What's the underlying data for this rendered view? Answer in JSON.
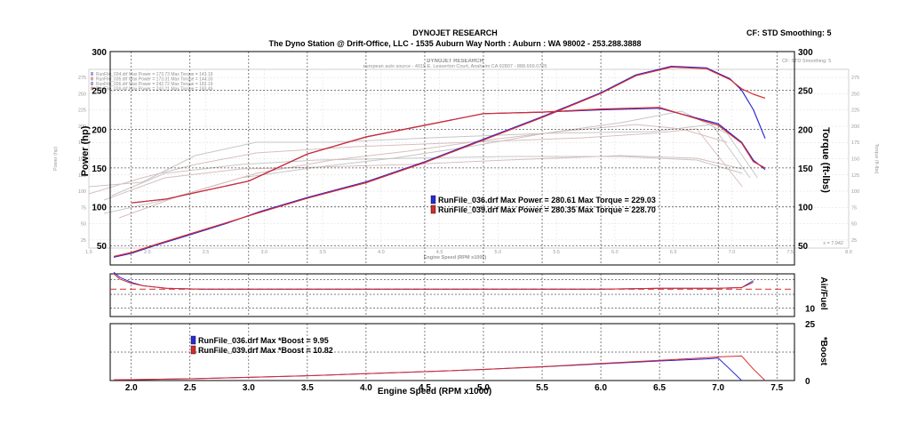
{
  "header": {
    "company": "DYNOJET RESEARCH",
    "shop": "The Dyno Station @ Drift-Office, LLC - 1535 Auburn Way North : Auburn : WA 98002 - 253.288.3888",
    "settings": "CF: STD  Smoothing: 5"
  },
  "ghost": {
    "company": "DYNOJET RESEARCH",
    "shop": "european auto source - 4015 E. Leaverton Court, Anaheim CA 92807 - 888.669.0705",
    "settings": "CF: STD  Smoothing: 5",
    "legend": [
      "RunFile_034.drf Max Power = 173.73     Max Torque = 143.19",
      "RunFile_035.drf Max Power = 173.31     Max Torque = 144.33",
      "RunFile_036.drf Max Power = 242.72     Max Torque = 183.19",
      "RunFile_039.drf Max Power = 243.21     Max Torque = 183.49"
    ],
    "left_axis_label": "Power (hp)",
    "right_axis_label": "Torque (ft-lbs)",
    "x_ticks": [
      "1.5",
      "2.0",
      "2.5",
      "3.0",
      "3.5",
      "4.0",
      "4.5",
      "5.0",
      "5.5",
      "6.0",
      "6.5",
      "7.0",
      "7.5",
      "8.0"
    ],
    "y_ticks": [
      "25",
      "50",
      "75",
      "100",
      "125",
      "150",
      "175",
      "200",
      "225",
      "250",
      "275"
    ],
    "xlabel": "Engine Speed (RPM x1000)",
    "cursor_readout": "x = 7.942"
  },
  "main_legend": [
    {
      "text": "RunFile_036.drf Max Power = 280.61    Max Torque = 229.03",
      "color": "#2a2ad8"
    },
    {
      "text": "RunFile_039.drf Max Power = 280.35    Max Torque = 228.70",
      "color": "#d82a2a"
    }
  ],
  "boost_legend": [
    {
      "text": "RunFile_036.drf Max *Boost = 9.95",
      "color": "#2a2ad8"
    },
    {
      "text": "RunFile_039.drf Max *Boost = 10.82",
      "color": "#d82a2a"
    }
  ],
  "labels": {
    "power_axis": "Power (hp)",
    "torque_axis": "Torque (ft-lbs)",
    "afr_axis": "Air/Fuel",
    "boost_axis": "*Boost",
    "xlabel": "Engine Speed (RPM x1000)"
  },
  "colors": {
    "run036": "#2a2ad8",
    "run039": "#d82a2a",
    "grid": "#000000"
  },
  "chart_data": [
    {
      "type": "line",
      "title": "DYNOJET RESEARCH",
      "xlabel": "Engine Speed (RPM x1000)",
      "ylabel": "Power (hp)",
      "ylabel_right": "Torque (ft-lbs)",
      "xlim": [
        1.82,
        7.65
      ],
      "ylim": [
        25,
        300
      ],
      "x_ticks": [
        2.0,
        2.5,
        3.0,
        3.5,
        4.0,
        4.5,
        5.0,
        5.5,
        6.0,
        6.5,
        7.0,
        7.5
      ],
      "y_ticks": [
        50,
        100,
        150,
        200,
        250,
        300
      ],
      "y_tick_labels": [
        "50",
        "100",
        "150",
        "200",
        "250",
        "300"
      ],
      "y_ticks_right": [
        50,
        100,
        150,
        200,
        250,
        300
      ],
      "y_tick_labels_right": [
        "50",
        "100",
        "150",
        "200",
        "250",
        "300"
      ],
      "grid": true,
      "series": [
        {
          "name": "RunFile_036.drf Power",
          "color": "#2a2ad8",
          "x": [
            1.85,
            2.0,
            2.2,
            2.5,
            2.8,
            3.1,
            3.5,
            4.0,
            4.5,
            5.0,
            5.5,
            6.0,
            6.3,
            6.6,
            6.9,
            7.1,
            7.2,
            7.3,
            7.4
          ],
          "y": [
            35,
            40,
            50,
            64,
            78,
            94,
            112,
            132,
            158,
            187,
            216,
            247,
            270,
            281,
            279,
            265,
            250,
            225,
            188
          ]
        },
        {
          "name": "RunFile_039.drf Power",
          "color": "#d82a2a",
          "x": [
            1.85,
            2.0,
            2.2,
            2.5,
            2.8,
            3.1,
            3.5,
            4.0,
            4.5,
            5.0,
            5.5,
            6.0,
            6.3,
            6.6,
            6.9,
            7.1,
            7.2,
            7.3,
            7.4
          ],
          "y": [
            36,
            41,
            51,
            65,
            79,
            93,
            111,
            131,
            157,
            186,
            215,
            246,
            269,
            280,
            278,
            264,
            252,
            245,
            240
          ]
        },
        {
          "name": "RunFile_036.drf Torque",
          "color": "#2a2ad8",
          "x": [
            2.0,
            2.3,
            2.6,
            3.0,
            3.5,
            4.0,
            4.5,
            5.0,
            5.5,
            6.0,
            6.5,
            7.0,
            7.2,
            7.3,
            7.4
          ],
          "y": [
            105,
            110,
            120,
            133,
            168,
            190,
            205,
            220,
            222,
            225,
            227,
            207,
            183,
            160,
            148
          ]
        },
        {
          "name": "RunFile_039.drf Torque",
          "color": "#d82a2a",
          "x": [
            2.0,
            2.3,
            2.6,
            3.0,
            3.5,
            4.0,
            4.5,
            5.0,
            5.5,
            6.0,
            6.5,
            7.0,
            7.2,
            7.3,
            7.4
          ],
          "y": [
            105,
            110,
            120,
            133,
            168,
            190,
            205,
            220,
            222,
            226,
            228,
            205,
            182,
            158,
            150
          ]
        }
      ]
    },
    {
      "type": "line",
      "ylabel": "Air/Fuel",
      "xlim": [
        1.82,
        7.65
      ],
      "ylim": [
        9,
        14
      ],
      "y_ticks": [
        10
      ],
      "y_tick_labels": [
        "10"
      ],
      "grid": true,
      "series": [
        {
          "name": "RunFile_036.drf Air/Fuel",
          "color": "#2a2ad8",
          "x": [
            1.85,
            1.9,
            2.0,
            2.1,
            2.3,
            2.6,
            3.0,
            4.0,
            5.0,
            6.0,
            6.5,
            7.0,
            7.2,
            7.3
          ],
          "y": [
            14.2,
            13.6,
            13.0,
            12.6,
            12.3,
            12.2,
            12.2,
            12.2,
            12.2,
            12.2,
            12.3,
            12.3,
            12.4,
            13.2
          ]
        },
        {
          "name": "RunFile_039.drf Air/Fuel",
          "color": "#d82a2a",
          "x": [
            1.85,
            1.9,
            2.0,
            2.1,
            2.3,
            2.6,
            3.0,
            4.0,
            5.0,
            6.0,
            6.5,
            7.0,
            7.2,
            7.3
          ],
          "y": [
            14.0,
            13.4,
            12.9,
            12.6,
            12.3,
            12.2,
            12.2,
            12.2,
            12.2,
            12.2,
            12.3,
            12.3,
            12.4,
            13.0
          ]
        }
      ]
    },
    {
      "type": "line",
      "xlabel": "Engine Speed (RPM x1000)",
      "ylabel": "*Boost",
      "xlim": [
        1.82,
        7.65
      ],
      "ylim": [
        0,
        25
      ],
      "x_ticks": [
        2.0,
        2.5,
        3.0,
        3.5,
        4.0,
        4.5,
        5.0,
        5.5,
        6.0,
        6.5,
        7.0,
        7.5
      ],
      "y_ticks": [
        0,
        25
      ],
      "y_tick_labels": [
        "0",
        "25"
      ],
      "grid": true,
      "series": [
        {
          "name": "RunFile_036.drf Boost",
          "color": "#2a2ad8",
          "x": [
            1.85,
            2.0,
            2.5,
            3.0,
            3.5,
            4.0,
            4.5,
            5.0,
            5.5,
            6.0,
            6.5,
            6.9,
            7.0,
            7.1,
            7.2
          ],
          "y": [
            0.3,
            0.4,
            0.8,
            1.4,
            2.1,
            3.0,
            3.9,
            4.9,
            6.0,
            7.3,
            8.6,
            9.5,
            9.9,
            5,
            0
          ]
        },
        {
          "name": "RunFile_039.drf Boost",
          "color": "#d82a2a",
          "x": [
            1.85,
            2.0,
            2.5,
            3.0,
            3.5,
            4.0,
            4.5,
            5.0,
            5.5,
            6.0,
            6.5,
            6.9,
            7.0,
            7.2,
            7.3,
            7.4
          ],
          "y": [
            0.3,
            0.4,
            0.8,
            1.4,
            2.1,
            3.0,
            3.9,
            4.9,
            6.1,
            7.5,
            8.9,
            10.0,
            10.4,
            10.8,
            5,
            0
          ]
        }
      ]
    }
  ]
}
